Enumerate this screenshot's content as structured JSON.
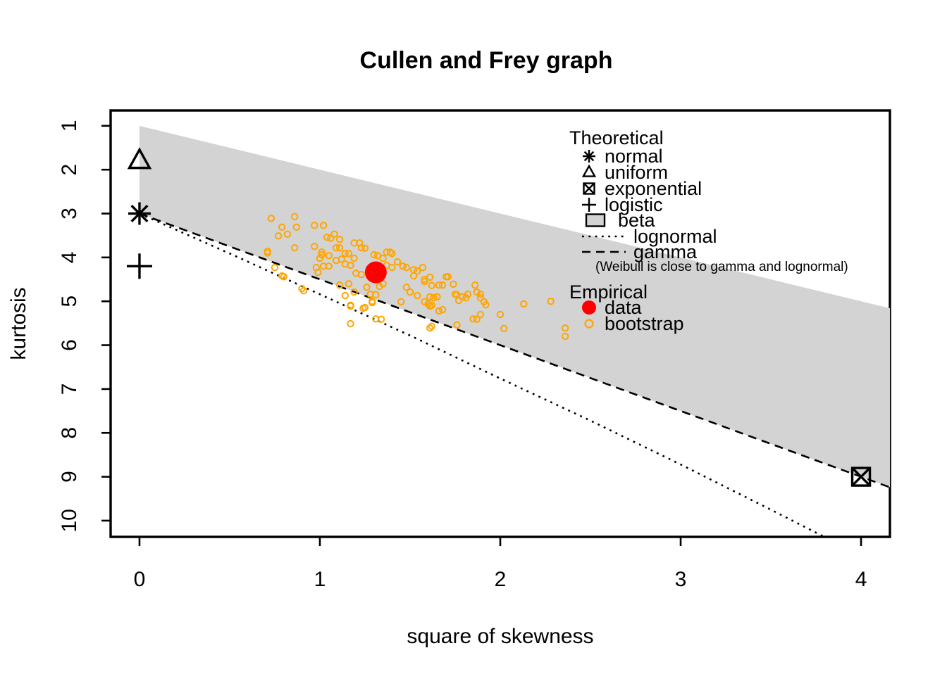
{
  "title": "Cullen and Frey graph",
  "chart_data": {
    "type": "scatter",
    "title": "Cullen and Frey graph",
    "xlabel": "square of skewness",
    "ylabel": "kurtosis",
    "xlim": [
      -0.16,
      4.16
    ],
    "ylim": [
      0.65,
      10.37
    ],
    "y_axis_reversed": true,
    "x_ticks": [
      0,
      1,
      2,
      3,
      4
    ],
    "y_ticks": [
      1,
      2,
      3,
      4,
      5,
      6,
      7,
      8,
      9,
      10
    ],
    "grid": false,
    "colors": {
      "bootstrap": "#FFA500",
      "data": "#FF0000",
      "beta_fill": "#D3D3D3",
      "axis": "#000000",
      "background": "#FFFFFF"
    },
    "beta_region": {
      "name": "beta",
      "polygon": [
        [
          0,
          1
        ],
        [
          4.2,
          5.2
        ],
        [
          4.2,
          9.3
        ],
        [
          0,
          3
        ]
      ]
    },
    "lognormal_line": {
      "name": "lognormal",
      "style": "dotted",
      "points": [
        [
          0,
          3
        ],
        [
          0.5,
          3.91
        ],
        [
          1,
          4.84
        ],
        [
          1.5,
          5.78
        ],
        [
          2,
          6.76
        ],
        [
          2.5,
          7.72
        ],
        [
          3,
          8.72
        ],
        [
          3.5,
          9.75
        ],
        [
          3.82,
          10.42
        ]
      ]
    },
    "gamma_line": {
      "name": "gamma",
      "style": "dashed",
      "points": [
        [
          0,
          3
        ],
        [
          4.2,
          9.3
        ]
      ]
    },
    "theoretical_points": [
      {
        "name": "normal",
        "marker": "star8",
        "x": 0,
        "y": 3
      },
      {
        "name": "uniform",
        "marker": "triangle",
        "x": 0,
        "y": 1.8
      },
      {
        "name": "exponential",
        "marker": "box-x",
        "x": 4,
        "y": 9
      },
      {
        "name": "logistic",
        "marker": "plus",
        "x": 0,
        "y": 4.2
      }
    ],
    "empirical_data_point": {
      "x": 1.31,
      "y": 4.34
    },
    "bootstrap_points": [
      [
        0.73,
        3.11
      ],
      [
        0.86,
        3.07
      ],
      [
        0.79,
        3.31
      ],
      [
        0.82,
        3.47
      ],
      [
        0.87,
        3.31
      ],
      [
        0.77,
        3.51
      ],
      [
        0.86,
        3.78
      ],
      [
        0.97,
        3.27
      ],
      [
        1.02,
        3.27
      ],
      [
        0.97,
        3.75
      ],
      [
        1.04,
        3.54
      ],
      [
        1.06,
        3.56
      ],
      [
        1.08,
        3.47
      ],
      [
        1.11,
        3.59
      ],
      [
        1.01,
        3.88
      ],
      [
        1.01,
        3.94
      ],
      [
        1.0,
        4.02
      ],
      [
        1.05,
        3.96
      ],
      [
        1.09,
        3.78
      ],
      [
        1.11,
        3.78
      ],
      [
        1.14,
        3.91
      ],
      [
        1.16,
        3.91
      ],
      [
        1.19,
        3.67
      ],
      [
        1.22,
        3.67
      ],
      [
        1.19,
        4.02
      ],
      [
        1.23,
        3.78
      ],
      [
        1.25,
        3.79
      ],
      [
        0.98,
        4.23
      ],
      [
        0.99,
        4.34
      ],
      [
        1.02,
        4.2
      ],
      [
        1.05,
        4.2
      ],
      [
        1.09,
        4.07
      ],
      [
        1.12,
        4.04
      ],
      [
        1.14,
        4.15
      ],
      [
        1.17,
        4.18
      ],
      [
        1.2,
        4.36
      ],
      [
        1.23,
        4.39
      ],
      [
        1.26,
        4.68
      ],
      [
        1.28,
        4.84
      ],
      [
        1.19,
        4.79
      ],
      [
        1.16,
        4.6
      ],
      [
        1.11,
        4.63
      ],
      [
        1.14,
        4.87
      ],
      [
        1.17,
        5.11
      ],
      [
        1.25,
        5.14
      ],
      [
        1.29,
        5.0
      ],
      [
        1.31,
        5.4
      ],
      [
        1.33,
        4.66
      ],
      [
        1.35,
        4.6
      ],
      [
        1.37,
        3.88
      ],
      [
        1.39,
        3.88
      ],
      [
        1.4,
        3.91
      ],
      [
        1.3,
        3.94
      ],
      [
        1.32,
        3.96
      ],
      [
        1.35,
        4.02
      ],
      [
        1.37,
        4.18
      ],
      [
        1.4,
        4.23
      ],
      [
        1.43,
        4.1
      ],
      [
        1.46,
        4.2
      ],
      [
        1.48,
        4.23
      ],
      [
        1.52,
        4.28
      ],
      [
        1.54,
        4.31
      ],
      [
        1.57,
        4.23
      ],
      [
        1.52,
        4.42
      ],
      [
        1.48,
        4.68
      ],
      [
        1.5,
        4.79
      ],
      [
        1.54,
        4.87
      ],
      [
        0.71,
        3.86
      ],
      [
        0.71,
        3.9
      ],
      [
        0.75,
        4.23
      ],
      [
        0.79,
        4.42
      ],
      [
        0.9,
        4.71
      ],
      [
        0.8,
        4.44
      ],
      [
        0.91,
        4.76
      ],
      [
        1.58,
        4.5
      ],
      [
        1.61,
        4.45
      ],
      [
        1.62,
        4.64
      ],
      [
        1.68,
        4.63
      ],
      [
        1.7,
        4.44
      ],
      [
        1.74,
        4.61
      ],
      [
        1.61,
        4.9
      ],
      [
        1.63,
        4.92
      ],
      [
        1.65,
        4.9
      ],
      [
        1.58,
        5.01
      ],
      [
        1.6,
        5.06
      ],
      [
        1.62,
        5.09
      ],
      [
        1.68,
        5.19
      ],
      [
        1.76,
        4.85
      ],
      [
        1.77,
        4.98
      ],
      [
        1.79,
        4.9
      ],
      [
        1.81,
        4.92
      ],
      [
        1.82,
        4.84
      ],
      [
        1.86,
        4.63
      ],
      [
        1.87,
        4.79
      ],
      [
        1.89,
        4.92
      ],
      [
        1.91,
        5.01
      ],
      [
        1.85,
        5.4
      ],
      [
        1.87,
        5.41
      ],
      [
        2.0,
        5.3
      ],
      [
        2.02,
        5.62
      ],
      [
        1.62,
        5.57
      ],
      [
        1.76,
        5.54
      ],
      [
        2.13,
        5.06
      ],
      [
        2.28,
        5.0
      ],
      [
        2.36,
        5.61
      ],
      [
        2.36,
        5.8
      ],
      [
        1.17,
        5.09
      ],
      [
        1.24,
        5.16
      ],
      [
        1.29,
        5.03
      ],
      [
        1.17,
        5.51
      ],
      [
        1.34,
        5.41
      ],
      [
        1.61,
        5.61
      ],
      [
        1.31,
        4.85
      ],
      [
        1.45,
        5.01
      ],
      [
        1.89,
        4.84
      ],
      [
        1.92,
        5.08
      ],
      [
        1.58,
        4.55
      ],
      [
        1.66,
        4.63
      ],
      [
        1.66,
        5.22
      ],
      [
        1.61,
        5.11
      ],
      [
        1.89,
        5.3
      ],
      [
        1.71,
        4.44
      ],
      [
        1.75,
        4.84
      ]
    ]
  },
  "legend": {
    "theoretical": {
      "header": "Theoretical",
      "items": [
        {
          "label": "normal",
          "marker": "star8"
        },
        {
          "label": "uniform",
          "marker": "triangle"
        },
        {
          "label": "exponential",
          "marker": "box-x"
        },
        {
          "label": "logistic",
          "marker": "plus"
        },
        {
          "label": "beta",
          "marker": "gray-square"
        },
        {
          "label": "lognormal",
          "marker": "dotted-line"
        },
        {
          "label": "gamma",
          "marker": "dashed-line"
        }
      ],
      "note": "(Weibull is close to gamma and lognormal)"
    },
    "empirical": {
      "header": "Empirical",
      "items": [
        {
          "label": "data",
          "marker": "red-dot"
        },
        {
          "label": "bootstrap",
          "marker": "orange-circle"
        }
      ]
    }
  }
}
